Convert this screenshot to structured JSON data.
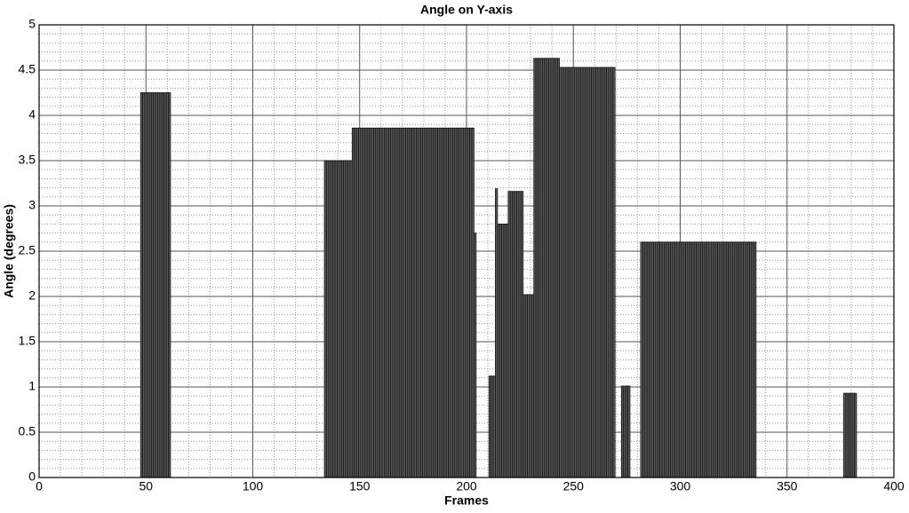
{
  "chart_data": {
    "type": "bar",
    "title": "Angle on Y-axis",
    "x_label": "Frames",
    "y_label": "Angle (degrees)",
    "color": "#5a5a5a",
    "grid": true,
    "xlim": [
      0,
      400
    ],
    "ylim": [
      0,
      5
    ],
    "xticks": [
      0,
      50,
      100,
      150,
      200,
      250,
      300,
      350,
      400
    ],
    "yticks": [
      0,
      0.5,
      1,
      1.5,
      2,
      2.5,
      3,
      3.5,
      4,
      4.5,
      5
    ],
    "x": [
      48,
      49,
      50,
      51,
      52,
      53,
      54,
      55,
      56,
      57,
      58,
      59,
      60,
      61,
      134,
      135,
      136,
      137,
      138,
      139,
      140,
      141,
      142,
      143,
      144,
      145,
      146,
      147,
      148,
      149,
      150,
      151,
      152,
      153,
      154,
      155,
      156,
      157,
      158,
      159,
      160,
      161,
      162,
      163,
      164,
      165,
      166,
      167,
      168,
      169,
      170,
      171,
      172,
      173,
      174,
      175,
      176,
      177,
      178,
      179,
      180,
      181,
      182,
      183,
      184,
      185,
      186,
      187,
      188,
      189,
      190,
      191,
      192,
      193,
      194,
      195,
      196,
      197,
      198,
      199,
      200,
      201,
      202,
      203,
      204,
      211,
      212,
      213,
      214,
      215,
      216,
      217,
      218,
      219,
      220,
      221,
      222,
      223,
      224,
      225,
      226,
      227,
      228,
      229,
      230,
      231,
      232,
      233,
      234,
      235,
      236,
      237,
      238,
      239,
      240,
      241,
      242,
      243,
      244,
      245,
      246,
      247,
      248,
      249,
      250,
      251,
      252,
      253,
      254,
      255,
      256,
      257,
      258,
      259,
      260,
      261,
      262,
      263,
      264,
      265,
      266,
      267,
      268,
      269,
      273,
      274,
      275,
      276,
      282,
      283,
      284,
      285,
      286,
      287,
      288,
      289,
      290,
      291,
      292,
      293,
      294,
      295,
      296,
      297,
      298,
      299,
      300,
      301,
      302,
      303,
      304,
      305,
      306,
      307,
      308,
      309,
      310,
      311,
      312,
      313,
      314,
      315,
      316,
      317,
      318,
      319,
      320,
      321,
      322,
      323,
      324,
      325,
      326,
      327,
      328,
      329,
      330,
      331,
      332,
      333,
      334,
      335,
      377,
      378,
      379,
      380,
      381,
      382
    ],
    "values": [
      4.25,
      4.25,
      4.25,
      4.25,
      4.25,
      4.25,
      4.25,
      4.25,
      4.25,
      4.25,
      4.25,
      4.25,
      4.25,
      4.25,
      3.5,
      3.5,
      3.5,
      3.5,
      3.5,
      3.5,
      3.5,
      3.5,
      3.5,
      3.5,
      3.5,
      3.5,
      3.5,
      3.86,
      3.86,
      3.86,
      3.86,
      3.86,
      3.86,
      3.86,
      3.86,
      3.86,
      3.86,
      3.86,
      3.86,
      3.86,
      3.86,
      3.86,
      3.86,
      3.86,
      3.86,
      3.86,
      3.86,
      3.86,
      3.86,
      3.86,
      3.86,
      3.86,
      3.86,
      3.86,
      3.86,
      3.86,
      3.86,
      3.86,
      3.86,
      3.86,
      3.86,
      3.86,
      3.86,
      3.86,
      3.86,
      3.86,
      3.86,
      3.86,
      3.86,
      3.86,
      3.86,
      3.86,
      3.86,
      3.86,
      3.86,
      3.86,
      3.86,
      3.86,
      3.86,
      3.86,
      3.86,
      3.86,
      3.86,
      3.86,
      2.7,
      1.12,
      1.12,
      1.12,
      3.19,
      2.8,
      2.8,
      2.8,
      2.8,
      2.8,
      3.16,
      3.16,
      3.16,
      3.16,
      3.16,
      3.16,
      3.16,
      2.02,
      2.02,
      2.02,
      2.02,
      2.02,
      4.63,
      4.63,
      4.63,
      4.63,
      4.63,
      4.63,
      4.63,
      4.63,
      4.63,
      4.63,
      4.63,
      4.63,
      4.53,
      4.53,
      4.53,
      4.53,
      4.53,
      4.53,
      4.53,
      4.53,
      4.53,
      4.53,
      4.53,
      4.53,
      4.53,
      4.53,
      4.53,
      4.53,
      4.53,
      4.53,
      4.53,
      4.53,
      4.53,
      4.53,
      4.53,
      4.53,
      4.53,
      4.53,
      1.01,
      1.01,
      1.01,
      1.01,
      2.6,
      2.6,
      2.6,
      2.6,
      2.6,
      2.6,
      2.6,
      2.6,
      2.6,
      2.6,
      2.6,
      2.6,
      2.6,
      2.6,
      2.6,
      2.6,
      2.6,
      2.6,
      2.6,
      2.6,
      2.6,
      2.6,
      2.6,
      2.6,
      2.6,
      2.6,
      2.6,
      2.6,
      2.6,
      2.6,
      2.6,
      2.6,
      2.6,
      2.6,
      2.6,
      2.6,
      2.6,
      2.6,
      2.6,
      2.6,
      2.6,
      2.6,
      2.6,
      2.6,
      2.6,
      2.6,
      2.6,
      2.6,
      2.6,
      2.6,
      2.6,
      2.6,
      2.6,
      2.6,
      0.93,
      0.93,
      0.93,
      0.93,
      0.93,
      0.93
    ]
  }
}
